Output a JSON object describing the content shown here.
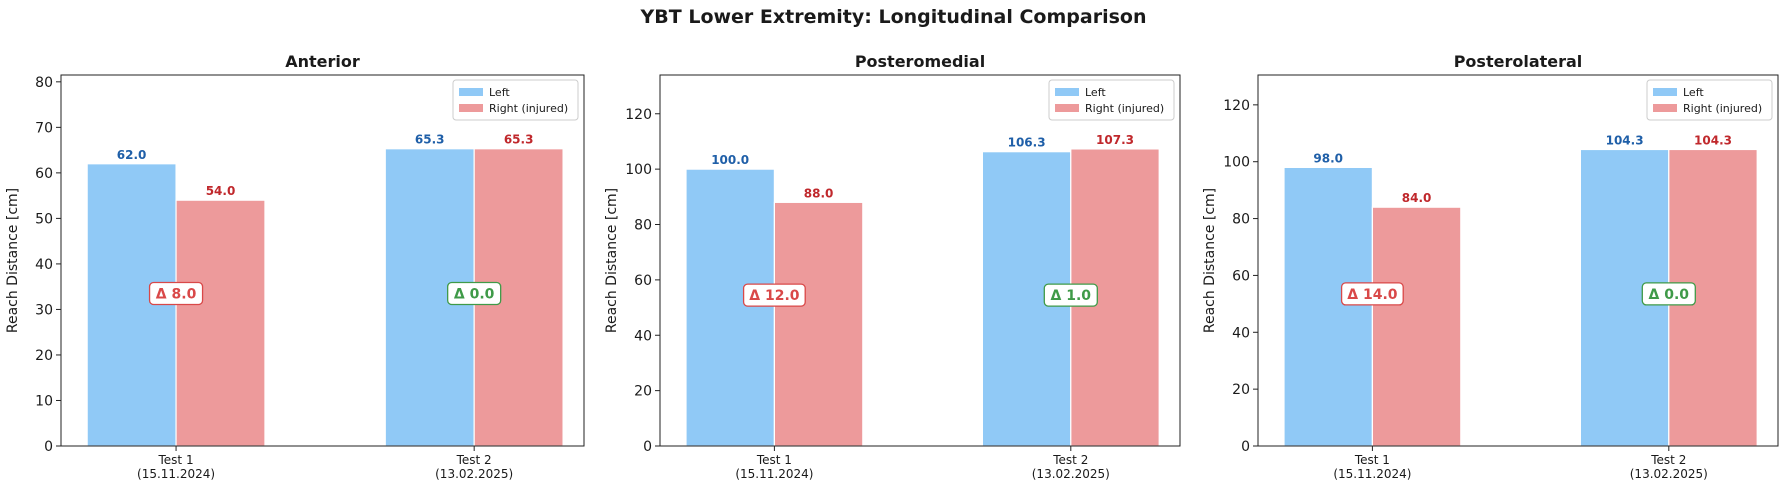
{
  "suptitle": "YBT Lower Extremity: Longitudinal Comparison",
  "colors": {
    "left": "#90c9f6",
    "right": "#ed9a9b",
    "left_label": "#1f5fa8",
    "right_label": "#c0282c",
    "delta_bad": "#d94848",
    "delta_good": "#3f9a48"
  },
  "chart_data": [
    {
      "type": "bar",
      "title": "Anterior",
      "ylabel": "Reach Distance [cm]",
      "ylim": [
        0,
        81.5
      ],
      "yticks": [
        0,
        10,
        20,
        30,
        40,
        50,
        60,
        70,
        80
      ],
      "delta_y": 33.5,
      "categories": [
        [
          "Test 1",
          "(15.11.2024)"
        ],
        [
          "Test 2",
          "(13.02.2025)"
        ]
      ],
      "series": [
        {
          "name": "Left",
          "values": [
            62.0,
            65.3
          ],
          "labels": [
            "62.0",
            "65.3"
          ]
        },
        {
          "name": "Right (injured)",
          "values": [
            54.0,
            65.3
          ],
          "labels": [
            "54.0",
            "65.3"
          ]
        }
      ],
      "deltas": [
        {
          "text": "Δ 8.0",
          "status": "bad"
        },
        {
          "text": "Δ 0.0",
          "status": "good"
        }
      ],
      "legend": "top-right",
      "grid": false
    },
    {
      "type": "bar",
      "title": "Posteromedial",
      "ylabel": "Reach Distance [cm]",
      "ylim": [
        0,
        134
      ],
      "yticks": [
        0,
        20,
        40,
        60,
        80,
        100,
        120
      ],
      "delta_y": 54.5,
      "categories": [
        [
          "Test 1",
          "(15.11.2024)"
        ],
        [
          "Test 2",
          "(13.02.2025)"
        ]
      ],
      "series": [
        {
          "name": "Left",
          "values": [
            100.0,
            106.3
          ],
          "labels": [
            "100.0",
            "106.3"
          ]
        },
        {
          "name": "Right (injured)",
          "values": [
            88.0,
            107.3
          ],
          "labels": [
            "88.0",
            "107.3"
          ]
        }
      ],
      "deltas": [
        {
          "text": "Δ 12.0",
          "status": "bad"
        },
        {
          "text": "Δ 1.0",
          "status": "good"
        }
      ],
      "legend": "top-right",
      "grid": false
    },
    {
      "type": "bar",
      "title": "Posterolateral",
      "ylabel": "Reach Distance [cm]",
      "ylim": [
        0,
        130.5
      ],
      "yticks": [
        0,
        20,
        40,
        60,
        80,
        100,
        120
      ],
      "delta_y": 53.5,
      "categories": [
        [
          "Test 1",
          "(15.11.2024)"
        ],
        [
          "Test 2",
          "(13.02.2025)"
        ]
      ],
      "series": [
        {
          "name": "Left",
          "values": [
            98.0,
            104.3
          ],
          "labels": [
            "98.0",
            "104.3"
          ]
        },
        {
          "name": "Right (injured)",
          "values": [
            84.0,
            104.3
          ],
          "labels": [
            "84.0",
            "104.3"
          ]
        }
      ],
      "deltas": [
        {
          "text": "Δ 14.0",
          "status": "bad"
        },
        {
          "text": "Δ 0.0",
          "status": "good"
        }
      ],
      "legend": "top-right",
      "grid": false
    }
  ]
}
